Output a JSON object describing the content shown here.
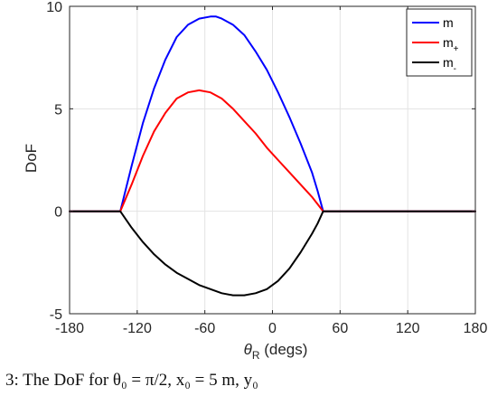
{
  "chart_data": {
    "type": "line",
    "xlabel": "θR (degs)",
    "xlabel_parts": {
      "symbol": "θ",
      "subscript": "R",
      "unit": " (degs)"
    },
    "ylabel": "DoF",
    "xlim": [
      -180,
      180
    ],
    "ylim": [
      -5,
      10
    ],
    "xticks": [
      -180,
      -120,
      -60,
      0,
      60,
      120,
      180
    ],
    "yticks": [
      -5,
      0,
      5,
      10
    ],
    "legend_position": "top-right",
    "grid": true,
    "series": [
      {
        "name": "m",
        "color": "#0000ff",
        "x": [
          -180,
          -135,
          -125,
          -115,
          -105,
          -95,
          -85,
          -75,
          -65,
          -55,
          -50,
          -45,
          -35,
          -25,
          -15,
          -5,
          5,
          15,
          25,
          35,
          40,
          45,
          180
        ],
        "y": [
          0,
          0,
          2.2,
          4.3,
          6.0,
          7.4,
          8.5,
          9.1,
          9.4,
          9.5,
          9.5,
          9.4,
          9.1,
          8.6,
          7.8,
          6.9,
          5.8,
          4.6,
          3.3,
          1.9,
          1.0,
          0,
          0
        ]
      },
      {
        "name": "m+",
        "label_parts": {
          "base": "m",
          "sub": "+"
        },
        "color": "#ff0000",
        "x": [
          -180,
          -135,
          -125,
          -115,
          -105,
          -95,
          -85,
          -75,
          -65,
          -55,
          -45,
          -35,
          -25,
          -15,
          -5,
          5,
          15,
          25,
          35,
          45,
          180
        ],
        "y": [
          0,
          0,
          1.3,
          2.7,
          3.9,
          4.8,
          5.5,
          5.8,
          5.9,
          5.8,
          5.5,
          5.0,
          4.4,
          3.8,
          3.1,
          2.5,
          1.9,
          1.3,
          0.7,
          0,
          0
        ]
      },
      {
        "name": "m-",
        "label_parts": {
          "base": "m",
          "sub": "-"
        },
        "color": "#000000",
        "x": [
          -180,
          -135,
          -125,
          -115,
          -105,
          -95,
          -85,
          -75,
          -65,
          -55,
          -45,
          -35,
          -25,
          -15,
          -5,
          5,
          15,
          25,
          35,
          40,
          45,
          180
        ],
        "y": [
          0,
          0,
          -0.8,
          -1.5,
          -2.1,
          -2.6,
          -3.0,
          -3.3,
          -3.6,
          -3.8,
          -4.0,
          -4.1,
          -4.1,
          -4.0,
          -3.8,
          -3.4,
          -2.8,
          -2.0,
          -1.1,
          -0.6,
          0,
          0
        ]
      }
    ]
  },
  "caption": "3: The DoF for θ₀ = π/2, x₀ = 5 m, y₀"
}
